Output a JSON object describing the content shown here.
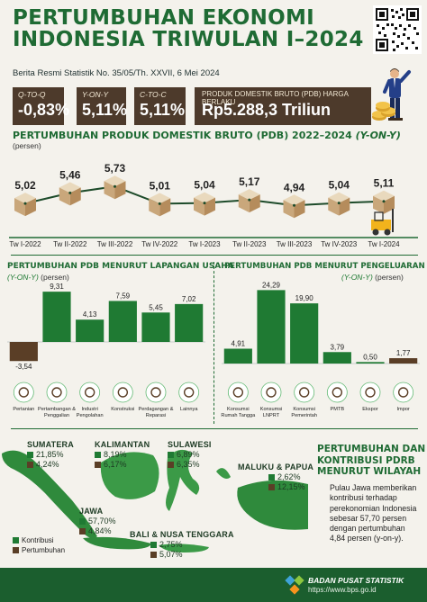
{
  "header": {
    "title_line1": "PERTUMBUHAN EKONOMI",
    "title_line2": "INDONESIA TRIWULAN I–2024",
    "subtitle": "Berita Resmi Statistik No. 35/05/Th. XXVII, 6 Mei 2024"
  },
  "kpis": [
    {
      "caption": "Q-TO-Q",
      "value": "-0,83%"
    },
    {
      "caption": "Y-ON-Y",
      "value": "5,11%"
    },
    {
      "caption": "C-TO-C",
      "value": "5,11%"
    }
  ],
  "pdb": {
    "caption": "PRODUK DOMESTIK BRUTO (PDB) HARGA BERLAKU",
    "value": "Rp5.288,3 Triliun"
  },
  "growth_section": {
    "title": "PERTUMBUHAN PRODUK DOMESTIK BRUTO (PDB) 2022–2024",
    "title_suffix": "(Y-ON-Y)",
    "unit": "(persen)"
  },
  "sector_section": {
    "title": "PERTUMBUHAN PDB MENURUT LAPANGAN USAHA",
    "sub1": "(Y-ON-Y)",
    "sub2": "(persen)"
  },
  "expenditure_section": {
    "title": "PERTUMBUHAN PDB MENURUT PENGELUARAN",
    "sub1": "(Y-ON-Y)",
    "sub2": "(persen)"
  },
  "chart_data": [
    {
      "type": "line",
      "title": "PERTUMBUHAN PRODUK DOMESTIK BRUTO (PDB) 2022–2024 (Y-ON-Y)",
      "ylabel": "(persen)",
      "categories": [
        "Tw I-2022",
        "Tw II-2022",
        "Tw III-2022",
        "Tw IV-2022",
        "Tw I-2023",
        "Tw II-2023",
        "Tw III-2023",
        "Tw IV-2023",
        "Tw I-2024"
      ],
      "values": [
        5.02,
        5.46,
        5.73,
        5.01,
        5.04,
        5.17,
        4.94,
        5.04,
        5.11
      ],
      "labels": [
        "5,02",
        "5,46",
        "5,73",
        "5,01",
        "5,04",
        "5,17",
        "4,94",
        "5,04",
        "5,11"
      ],
      "ylim": [
        4.5,
        6.0
      ],
      "color": "#1d4b2a"
    },
    {
      "type": "bar",
      "title": "PERTUMBUHAN PDB MENURUT LAPANGAN USAHA",
      "ylabel": "(persen)",
      "categories": [
        "Pertanian",
        "Pertambangan & Penggalian",
        "Industri Pengolahan",
        "Konstruksi",
        "Perdagangan & Reparasi",
        "Lainnya"
      ],
      "values": [
        -3.54,
        9.31,
        4.13,
        7.59,
        5.45,
        7.02
      ],
      "labels": [
        "-3,54",
        "9,31",
        "4,13",
        "7,59",
        "5,45",
        "7,02"
      ],
      "ylim": [
        -4,
        10
      ],
      "colors": [
        "#5a3e26",
        "#1f7a33",
        "#1f7a33",
        "#1f7a33",
        "#1f7a33",
        "#1f7a33"
      ]
    },
    {
      "type": "bar",
      "title": "PERTUMBUHAN PDB MENURUT PENGELUARAN",
      "ylabel": "(persen)",
      "categories": [
        "Konsumsi Rumah Tangga",
        "Konsumsi LNPRT",
        "Konsumsi Pemerintah",
        "PMTB",
        "Ekspor",
        "Impor"
      ],
      "values": [
        4.91,
        24.29,
        19.9,
        3.79,
        0.5,
        1.77
      ],
      "labels": [
        "4,91",
        "24,29",
        "19,90",
        "3,79",
        "0,50",
        "1,77"
      ],
      "ylim": [
        0,
        25
      ],
      "colors": [
        "#1f7a33",
        "#1f7a33",
        "#1f7a33",
        "#1f7a33",
        "#1f7a33",
        "#5a3e26"
      ]
    }
  ],
  "regions": [
    {
      "name": "SUMATERA",
      "contribution": "21,85%",
      "growth": "4,24%"
    },
    {
      "name": "KALIMANTAN",
      "contribution": "8,19%",
      "growth": "6,17%"
    },
    {
      "name": "SULAWESI",
      "contribution": "6,89%",
      "growth": "6,35%"
    },
    {
      "name": "MALUKU & PAPUA",
      "contribution": "2,62%",
      "growth": "12,15%"
    },
    {
      "name": "JAWA",
      "contribution": "57,70%",
      "growth": "4,84%"
    },
    {
      "name": "BALI & NUSA TENGGARA",
      "contribution": "2,75%",
      "growth": "5,07%"
    }
  ],
  "map_legend": {
    "contribution": "Kontribusi",
    "growth": "Pertumbuhan"
  },
  "region_text": {
    "title_line1": "PERTUMBUHAN DAN",
    "title_line2": "KONTRIBUSI PDRB",
    "title_line3": "MENURUT WILAYAH",
    "body_line1": "Pulau Jawa memberikan",
    "body_line2": "kontribusi terhadap",
    "body_line3": "perekonomian Indonesia",
    "body_line4": "sebesar 57,70 persen",
    "body_line5": "dengan pertumbuhan",
    "body_line6": "4,84 persen (y-on-y)."
  },
  "footer": {
    "org": "BADAN PUSAT STATISTIK",
    "url": "https://www.bps.go.id"
  },
  "colors": {
    "dark_green": "#1f6b34",
    "bar_green": "#1f7a33",
    "brown": "#5a3e26",
    "kpi_bg": "#4d3a2b",
    "footer_bg": "#1b5e2e",
    "map_green": "#2f8a3c"
  },
  "icons": [
    "qr-code-icon",
    "businessman-icon",
    "coin-stack-icon",
    "box-icon",
    "forklift-icon",
    "wheat-icon",
    "mining-icon",
    "factory-icon",
    "construction-icon",
    "handshake-icon",
    "etc-icon",
    "household-icon",
    "nonprofit-icon",
    "government-icon",
    "investment-icon",
    "export-icon",
    "import-icon",
    "bps-logo-icon"
  ]
}
